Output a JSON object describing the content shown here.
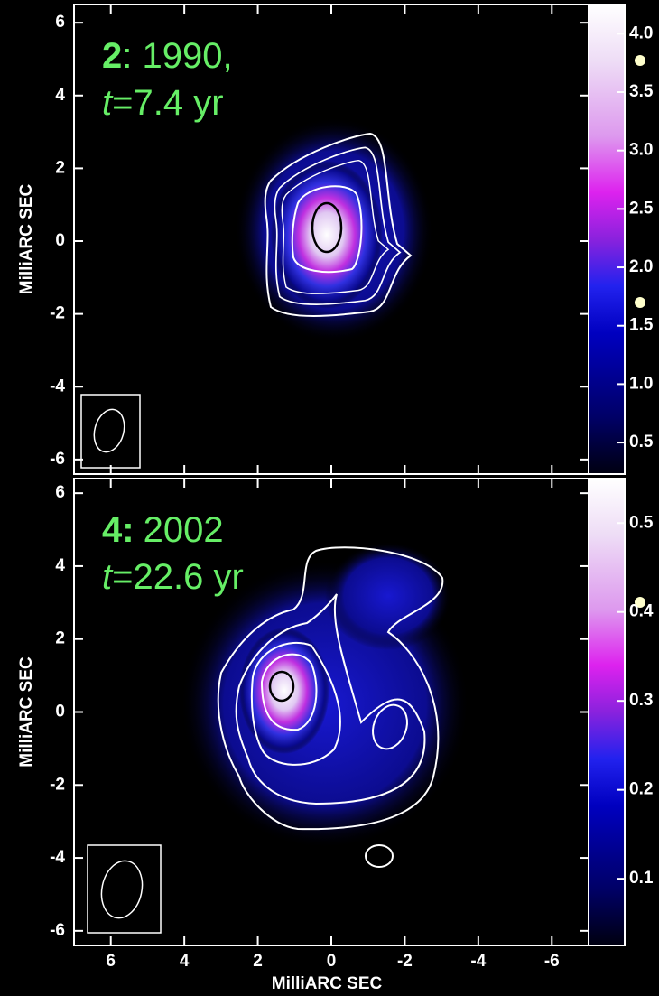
{
  "chart_data": [
    {
      "type": "image",
      "label_number": "2",
      "label_text": ": 1990,",
      "time_symbol": "t",
      "time_text": "=7.4 yr",
      "ylabel": "MilliARC SEC",
      "xlim": [
        7,
        -7
      ],
      "ylim": [
        -6.4,
        6.5
      ],
      "xticks": [
        6,
        4,
        2,
        0,
        -2,
        -4,
        -6
      ],
      "yticks": [
        6,
        4,
        2,
        0,
        -2,
        -4,
        -6
      ],
      "clim": [
        0.23,
        4.25
      ],
      "cticks": [
        {
          "value": 0.5,
          "label": "0.5"
        },
        {
          "value": 1.0,
          "label": "1.0"
        },
        {
          "value": 1.5,
          "label": "1.5"
        },
        {
          "value": 2.0,
          "label": "2.0"
        },
        {
          "value": 2.5,
          "label": "2.5"
        },
        {
          "value": 3.0,
          "label": "3.0"
        },
        {
          "value": 3.5,
          "label": "3.5"
        },
        {
          "value": 4.0,
          "label": "4.0"
        }
      ]
    },
    {
      "type": "image",
      "label_number": "4:",
      "label_text": "2002",
      "time_symbol": "t",
      "time_text": "=22.6 yr",
      "ylabel": "MilliARC SEC",
      "xlabel": "MilliARC SEC",
      "xlim": [
        7,
        -7
      ],
      "ylim": [
        -6.4,
        6.4
      ],
      "xticks": [
        6,
        4,
        2,
        0,
        -2,
        -4,
        -6
      ],
      "yticks": [
        6,
        4,
        2,
        0,
        -2,
        -4,
        -6
      ],
      "clim": [
        0.025,
        0.55
      ],
      "cticks": [
        0.1,
        0.2,
        0.3,
        0.4,
        0.5
      ]
    }
  ]
}
